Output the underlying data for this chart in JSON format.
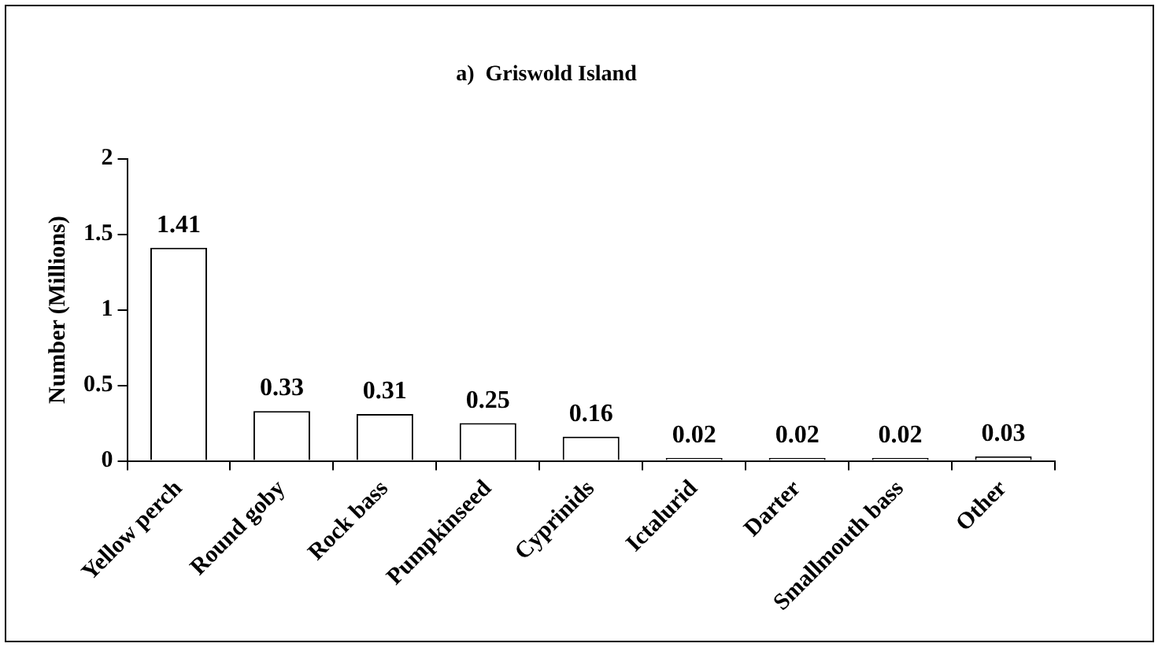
{
  "chart_data": {
    "type": "bar",
    "title": "a)  Griswold Island",
    "ylabel": "Number (Millions)",
    "categories": [
      "Yellow perch",
      "Round goby",
      "Rock bass",
      "Pumpkinseed",
      "Cyprinids",
      "Ictalurid",
      "Darter",
      "Smallmouth bass",
      "Other"
    ],
    "values": [
      1.41,
      0.33,
      0.31,
      0.25,
      0.16,
      0.02,
      0.02,
      0.02,
      0.03
    ],
    "color": "#ffffff",
    "ylim": [
      0,
      2
    ],
    "yticks": [
      0,
      0.5,
      1,
      1.5,
      2
    ],
    "grid": false,
    "legend": false,
    "data_labels": true
  }
}
